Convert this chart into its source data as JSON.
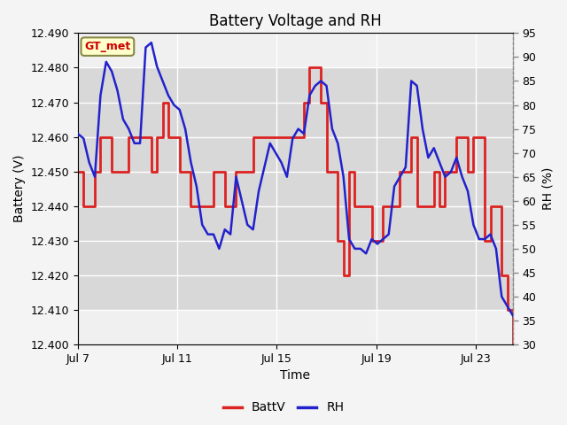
{
  "title": "Battery Voltage and RH",
  "xlabel": "Time",
  "ylabel_left": "Battery (V)",
  "ylabel_right": "RH (%)",
  "ylim_left": [
    12.4,
    12.49
  ],
  "ylim_right": [
    30,
    95
  ],
  "yticks_left": [
    12.4,
    12.41,
    12.42,
    12.43,
    12.44,
    12.45,
    12.46,
    12.47,
    12.48,
    12.49
  ],
  "yticks_right": [
    30,
    35,
    40,
    45,
    50,
    55,
    60,
    65,
    70,
    75,
    80,
    85,
    90,
    95
  ],
  "xtick_labels": [
    "Jul 7",
    "Jul 11",
    "Jul 15",
    "Jul 19",
    "Jul 23"
  ],
  "xtick_positions": [
    0,
    4,
    8,
    12,
    16
  ],
  "xlim": [
    0,
    17.5
  ],
  "shaded_ymin": 12.41,
  "shaded_ymax": 12.48,
  "legend_label_batt": "BattV",
  "legend_label_rh": "RH",
  "watermark_text": "GT_met",
  "watermark_color": "#cc0000",
  "watermark_bg": "#ffffcc",
  "watermark_border": "#888844",
  "batt_color": "#dd2222",
  "rh_color": "#2222cc",
  "fig_bg_color": "#f4f4f4",
  "axes_bg_color": "#f0f0f0",
  "shaded_color": "#d8d8d8",
  "grid_color": "#ffffff",
  "title_fontsize": 12,
  "batt_v": [
    12.45,
    12.44,
    12.44,
    12.45,
    12.46,
    12.46,
    12.45,
    12.45,
    12.45,
    12.46,
    12.46,
    12.46,
    12.46,
    12.45,
    12.46,
    12.47,
    12.46,
    12.46,
    12.45,
    12.45,
    12.44,
    12.44,
    12.44,
    12.44,
    12.45,
    12.45,
    12.44,
    12.44,
    12.45,
    12.45,
    12.45,
    12.46,
    12.46,
    12.46,
    12.46,
    12.46,
    12.46,
    12.46,
    12.46,
    12.46,
    12.47,
    12.48,
    12.48,
    12.47,
    12.45,
    12.45,
    12.43,
    12.42,
    12.45,
    12.44,
    12.44,
    12.44,
    12.43,
    12.43,
    12.44,
    12.44,
    12.44,
    12.45,
    12.45,
    12.46,
    12.44,
    12.44,
    12.44,
    12.45,
    12.44,
    12.45,
    12.45,
    12.46,
    12.46,
    12.45,
    12.46,
    12.46,
    12.43,
    12.44,
    12.44,
    12.42,
    12.41,
    12.4
  ],
  "rh_v": [
    74,
    73,
    68,
    65,
    82,
    89,
    87,
    83,
    77,
    75,
    72,
    72,
    92,
    93,
    88,
    85,
    82,
    80,
    79,
    75,
    68,
    63,
    55,
    53,
    53,
    50,
    54,
    53,
    65,
    60,
    55,
    54,
    62,
    67,
    72,
    70,
    68,
    65,
    73,
    75,
    74,
    82,
    84,
    85,
    84,
    75,
    72,
    65,
    52,
    50,
    50,
    49,
    52,
    51,
    52,
    53,
    63,
    65,
    67,
    85,
    84,
    75,
    69,
    71,
    68,
    65,
    66,
    69,
    65,
    62,
    55,
    52,
    52,
    53,
    50,
    40,
    38,
    36
  ]
}
